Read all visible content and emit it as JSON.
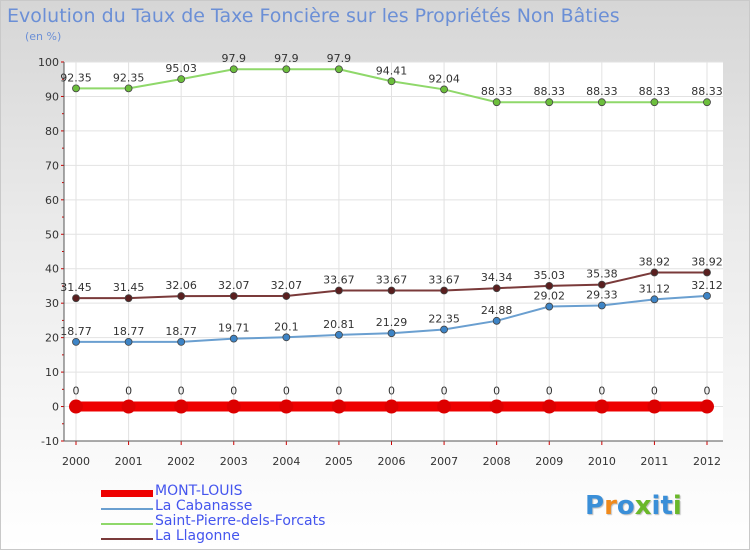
{
  "header": {
    "title": "Evolution du Taux de Taxe Foncière sur les Propriétés Non Bâties",
    "unit": "(en %)"
  },
  "logo": {
    "letters": [
      "P",
      "r",
      "o",
      "x",
      "i",
      "t",
      "i"
    ],
    "colors": [
      "#3a8fd8",
      "#f08a1c",
      "#3a8fd8",
      "#6ab82a",
      "#3a8fd8",
      "#3a8fd8",
      "#6ab82a"
    ]
  },
  "chart_data": {
    "type": "line",
    "title": "Evolution du Taux de Taxe Foncière sur les Propriétés Non Bâties",
    "ylabel": "(en %)",
    "ylim": [
      -10,
      100
    ],
    "yticks": [
      -10,
      0,
      10,
      20,
      30,
      40,
      50,
      60,
      70,
      80,
      90,
      100
    ],
    "grid": true,
    "categories": [
      "2000",
      "2001",
      "2002",
      "2003",
      "2004",
      "2005",
      "2006",
      "2007",
      "2008",
      "2009",
      "2010",
      "2011",
      "2012"
    ],
    "series": [
      {
        "name": "Saint-Pierre-dels-Forcats",
        "color": "#8fd86a",
        "marker": "#6cbf3c",
        "values": [
          92.35,
          92.35,
          95.03,
          97.9,
          97.9,
          97.9,
          94.41,
          92.04,
          88.33,
          88.33,
          88.33,
          88.33,
          88.33
        ],
        "labels": [
          "92.35",
          "92.35",
          "95.03",
          "97.9",
          "97.9",
          "97.9",
          "94.41",
          "92.04",
          "88.33",
          "88.33",
          "88.33",
          "88.33",
          "88.33"
        ]
      },
      {
        "name": "La Llagonne",
        "color": "#7a3a3a",
        "marker": "#5a1f1f",
        "values": [
          31.45,
          31.45,
          32.06,
          32.07,
          32.07,
          33.67,
          33.67,
          33.67,
          34.34,
          35.03,
          35.38,
          38.92,
          38.92
        ],
        "labels": [
          "31.45",
          "31.45",
          "32.06",
          "32.07",
          "32.07",
          "33.67",
          "33.67",
          "33.67",
          "34.34",
          "35.03",
          "35.38",
          "38.92",
          "38.92"
        ]
      },
      {
        "name": "La Cabanasse",
        "color": "#6a9fd0",
        "marker": "#3d84c6",
        "values": [
          18.77,
          18.77,
          18.77,
          19.71,
          20.1,
          20.81,
          21.29,
          22.35,
          24.88,
          29.02,
          29.33,
          31.12,
          32.12
        ],
        "labels": [
          "18.77",
          "18.77",
          "18.77",
          "19.71",
          "20.1",
          "20.81",
          "21.29",
          "22.35",
          "24.88",
          "29.02",
          "29.33",
          "31.12",
          "32.12"
        ]
      },
      {
        "name": "MONT-LOUIS",
        "color": "#ee0000",
        "marker": "#dd0000",
        "values": [
          0,
          0,
          0,
          0,
          0,
          0,
          0,
          0,
          0,
          0,
          0,
          0,
          0
        ],
        "labels": [
          "0",
          "0",
          "0",
          "0",
          "0",
          "0",
          "0",
          "0",
          "0",
          "0",
          "0",
          "0",
          "0"
        ]
      }
    ],
    "legend": [
      {
        "name": "MONT-LOUIS",
        "color": "#ee0000",
        "text_color": "#4455ee",
        "thick": true
      },
      {
        "name": "La Cabanasse",
        "color": "#6a9fd0",
        "text_color": "#4455ee",
        "thick": false
      },
      {
        "name": "Saint-Pierre-dels-Forcats",
        "color": "#8fd86a",
        "text_color": "#4455ee",
        "thick": false
      },
      {
        "name": "La Llagonne",
        "color": "#7a3a3a",
        "text_color": "#4455ee",
        "thick": false
      }
    ]
  }
}
